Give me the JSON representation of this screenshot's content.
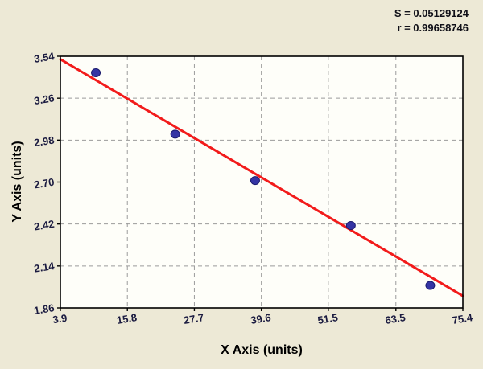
{
  "stats": {
    "s_label": "S = 0.05129124",
    "r_label": "r = 0.99658746"
  },
  "chart_data": {
    "type": "scatter",
    "title": "",
    "xlabel": "X Axis (units)",
    "ylabel": "Y Axis (units)",
    "xlim": [
      3.9,
      75.4
    ],
    "ylim": [
      1.86,
      3.54
    ],
    "grid": true,
    "legend_position": "none",
    "x_ticks": [
      {
        "value": 3.9,
        "label": "3.9"
      },
      {
        "value": 15.8,
        "label": "15.8"
      },
      {
        "value": 27.7,
        "label": "27.7"
      },
      {
        "value": 39.6,
        "label": "39.6"
      },
      {
        "value": 51.5,
        "label": "51.5"
      },
      {
        "value": 63.5,
        "label": "63.5"
      },
      {
        "value": 75.4,
        "label": "75.4"
      }
    ],
    "y_ticks": [
      {
        "value": 1.86,
        "label": "1.86"
      },
      {
        "value": 2.14,
        "label": "2.14"
      },
      {
        "value": 2.42,
        "label": "2.42"
      },
      {
        "value": 2.7,
        "label": "2.70"
      },
      {
        "value": 2.98,
        "label": "2.98"
      },
      {
        "value": 3.26,
        "label": "3.26"
      },
      {
        "value": 3.54,
        "label": "3.54"
      }
    ],
    "points": [
      {
        "x": 10.2,
        "y": 3.43
      },
      {
        "x": 24.3,
        "y": 3.02
      },
      {
        "x": 38.5,
        "y": 2.71
      },
      {
        "x": 55.5,
        "y": 2.41
      },
      {
        "x": 69.6,
        "y": 2.01
      }
    ],
    "regression_line": {
      "x1": 3.9,
      "y1": 3.52,
      "x2": 75.4,
      "y2": 1.94
    },
    "colors": {
      "background": "#EDE9D6",
      "plot_bg": "#FEFEF9",
      "grid": "#9B9B9B",
      "border": "#000000",
      "line": "#F21B1B",
      "point": "#3434A4",
      "point_edge": "#1B1B6E",
      "tick_text": "#1B1B40"
    }
  }
}
